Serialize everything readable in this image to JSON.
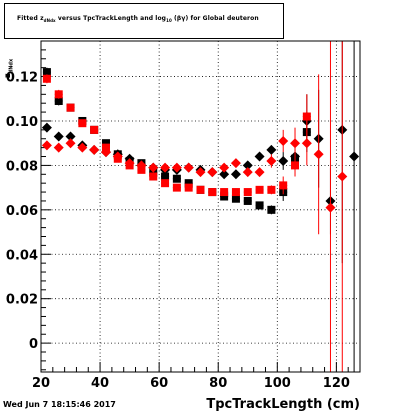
{
  "title": {
    "prefix": "Fitted",
    "z_symbol": "z",
    "z_sub": "dNdx",
    "middle": "versus TpcTrackLength and log",
    "log_sub": "10",
    "suffix": "(βγ) for Global deuteron"
  },
  "y_axis_label": {
    "z": "z",
    "sub": "dNdx"
  },
  "x_axis_label": "TpcTrackLength (cm)",
  "timestamp": "Wed Jun  7 18:15:46 2017",
  "chart_data": {
    "type": "scatter",
    "xlim": [
      20,
      128
    ],
    "ylim": [
      -0.013,
      0.136
    ],
    "x_ticks": [
      20,
      40,
      60,
      80,
      100,
      120
    ],
    "y_ticks": [
      0,
      0.02,
      0.04,
      0.06,
      0.08,
      0.1,
      0.12
    ],
    "grid": true,
    "series": [
      {
        "color": "#000000",
        "marker": "square",
        "points": [
          {
            "x": 22,
            "y": 0.122,
            "err": 0.002
          },
          {
            "x": 26,
            "y": 0.109,
            "err": 0.002
          },
          {
            "x": 30,
            "y": 0.106,
            "err": 0.0015
          },
          {
            "x": 34,
            "y": 0.1,
            "err": 0.0015
          },
          {
            "x": 38,
            "y": 0.096,
            "err": 0.0015
          },
          {
            "x": 42,
            "y": 0.09,
            "err": 0.0015
          },
          {
            "x": 46,
            "y": 0.085,
            "err": 0.0012
          },
          {
            "x": 50,
            "y": 0.082,
            "err": 0.0012
          },
          {
            "x": 54,
            "y": 0.081,
            "err": 0.0012
          },
          {
            "x": 58,
            "y": 0.077,
            "err": 0.0012
          },
          {
            "x": 62,
            "y": 0.075,
            "err": 0.0012
          },
          {
            "x": 66,
            "y": 0.074,
            "err": 0.0012
          },
          {
            "x": 70,
            "y": 0.072,
            "err": 0.0012
          },
          {
            "x": 74,
            "y": 0.069,
            "err": 0.0012
          },
          {
            "x": 78,
            "y": 0.068,
            "err": 0.0012
          },
          {
            "x": 82,
            "y": 0.066,
            "err": 0.0012
          },
          {
            "x": 86,
            "y": 0.065,
            "err": 0.0012
          },
          {
            "x": 90,
            "y": 0.064,
            "err": 0.0015
          },
          {
            "x": 94,
            "y": 0.062,
            "err": 0.0015
          },
          {
            "x": 98,
            "y": 0.06,
            "err": 0.002
          },
          {
            "x": 102,
            "y": 0.068,
            "err": 0.004
          },
          {
            "x": 106,
            "y": 0.083,
            "err": 0.004
          },
          {
            "x": 110,
            "y": 0.095,
            "err": 0.009
          }
        ]
      },
      {
        "color": "#000000",
        "marker": "diamond",
        "points": [
          {
            "x": 22,
            "y": 0.097,
            "err": 0.002
          },
          {
            "x": 26,
            "y": 0.093,
            "err": 0.002
          },
          {
            "x": 30,
            "y": 0.093,
            "err": 0.0015
          },
          {
            "x": 34,
            "y": 0.089,
            "err": 0.0015
          },
          {
            "x": 38,
            "y": 0.087,
            "err": 0.0015
          },
          {
            "x": 42,
            "y": 0.086,
            "err": 0.0015
          },
          {
            "x": 46,
            "y": 0.085,
            "err": 0.0012
          },
          {
            "x": 50,
            "y": 0.083,
            "err": 0.0012
          },
          {
            "x": 54,
            "y": 0.08,
            "err": 0.0012
          },
          {
            "x": 58,
            "y": 0.079,
            "err": 0.0012
          },
          {
            "x": 62,
            "y": 0.078,
            "err": 0.0012
          },
          {
            "x": 66,
            "y": 0.078,
            "err": 0.0012
          },
          {
            "x": 70,
            "y": 0.079,
            "err": 0.0012
          },
          {
            "x": 74,
            "y": 0.078,
            "err": 0.0012
          },
          {
            "x": 78,
            "y": 0.077,
            "err": 0.0012
          },
          {
            "x": 82,
            "y": 0.076,
            "err": 0.0012
          },
          {
            "x": 86,
            "y": 0.076,
            "err": 0.0015
          },
          {
            "x": 90,
            "y": 0.08,
            "err": 0.0015
          },
          {
            "x": 94,
            "y": 0.084,
            "err": 0.002
          },
          {
            "x": 98,
            "y": 0.087,
            "err": 0.002
          },
          {
            "x": 102,
            "y": 0.082,
            "err": 0.004
          },
          {
            "x": 106,
            "y": 0.084,
            "err": 0.006
          },
          {
            "x": 110,
            "y": 0.1,
            "err": 0.012
          },
          {
            "x": 114,
            "y": 0.092,
            "err": 0.022
          },
          {
            "x": 118,
            "y": 0.064,
            "err": 0.015
          },
          {
            "x": 122,
            "y": 0.096,
            "err": 0.06
          },
          {
            "x": 126,
            "y": 0.084,
            "err": 0.12
          }
        ]
      },
      {
        "color": "#ff0000",
        "marker": "square",
        "points": [
          {
            "x": 22,
            "y": 0.119,
            "err": 0.002
          },
          {
            "x": 26,
            "y": 0.112,
            "err": 0.002
          },
          {
            "x": 30,
            "y": 0.106,
            "err": 0.0015
          },
          {
            "x": 34,
            "y": 0.099,
            "err": 0.0015
          },
          {
            "x": 38,
            "y": 0.096,
            "err": 0.0015
          },
          {
            "x": 42,
            "y": 0.088,
            "err": 0.0015
          },
          {
            "x": 46,
            "y": 0.083,
            "err": 0.0012
          },
          {
            "x": 50,
            "y": 0.08,
            "err": 0.0012
          },
          {
            "x": 54,
            "y": 0.078,
            "err": 0.0012
          },
          {
            "x": 58,
            "y": 0.075,
            "err": 0.0012
          },
          {
            "x": 62,
            "y": 0.072,
            "err": 0.0012
          },
          {
            "x": 66,
            "y": 0.07,
            "err": 0.0012
          },
          {
            "x": 70,
            "y": 0.07,
            "err": 0.0012
          },
          {
            "x": 74,
            "y": 0.069,
            "err": 0.0012
          },
          {
            "x": 78,
            "y": 0.068,
            "err": 0.0012
          },
          {
            "x": 82,
            "y": 0.068,
            "err": 0.0012
          },
          {
            "x": 86,
            "y": 0.068,
            "err": 0.0012
          },
          {
            "x": 90,
            "y": 0.068,
            "err": 0.0015
          },
          {
            "x": 94,
            "y": 0.069,
            "err": 0.0015
          },
          {
            "x": 98,
            "y": 0.069,
            "err": 0.002
          },
          {
            "x": 102,
            "y": 0.071,
            "err": 0.004
          },
          {
            "x": 106,
            "y": 0.08,
            "err": 0.005
          },
          {
            "x": 110,
            "y": 0.102,
            "err": 0.01
          }
        ]
      },
      {
        "color": "#ff0000",
        "marker": "diamond",
        "points": [
          {
            "x": 22,
            "y": 0.089,
            "err": 0.002
          },
          {
            "x": 26,
            "y": 0.088,
            "err": 0.002
          },
          {
            "x": 30,
            "y": 0.09,
            "err": 0.0015
          },
          {
            "x": 34,
            "y": 0.088,
            "err": 0.0015
          },
          {
            "x": 38,
            "y": 0.087,
            "err": 0.0015
          },
          {
            "x": 42,
            "y": 0.086,
            "err": 0.0015
          },
          {
            "x": 46,
            "y": 0.084,
            "err": 0.0012
          },
          {
            "x": 50,
            "y": 0.081,
            "err": 0.0012
          },
          {
            "x": 54,
            "y": 0.08,
            "err": 0.0012
          },
          {
            "x": 58,
            "y": 0.079,
            "err": 0.0012
          },
          {
            "x": 62,
            "y": 0.079,
            "err": 0.0012
          },
          {
            "x": 66,
            "y": 0.079,
            "err": 0.0012
          },
          {
            "x": 70,
            "y": 0.079,
            "err": 0.0012
          },
          {
            "x": 74,
            "y": 0.077,
            "err": 0.0012
          },
          {
            "x": 78,
            "y": 0.077,
            "err": 0.0012
          },
          {
            "x": 82,
            "y": 0.079,
            "err": 0.0012
          },
          {
            "x": 86,
            "y": 0.081,
            "err": 0.0015
          },
          {
            "x": 90,
            "y": 0.077,
            "err": 0.0015
          },
          {
            "x": 94,
            "y": 0.077,
            "err": 0.002
          },
          {
            "x": 98,
            "y": 0.082,
            "err": 0.003
          },
          {
            "x": 102,
            "y": 0.091,
            "err": 0.005
          },
          {
            "x": 106,
            "y": 0.09,
            "err": 0.007
          },
          {
            "x": 110,
            "y": 0.09,
            "err": 0.01
          },
          {
            "x": 114,
            "y": 0.085,
            "err": 0.036
          },
          {
            "x": 118,
            "y": 0.061,
            "err": 0.09
          },
          {
            "x": 122,
            "y": 0.075,
            "err": 0.1
          }
        ]
      }
    ]
  }
}
